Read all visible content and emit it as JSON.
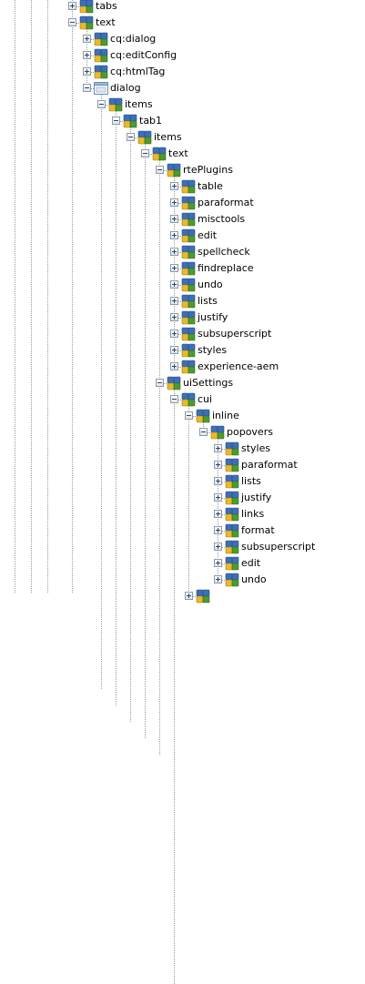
{
  "tree": {
    "nodes": [
      {
        "label": "tabs",
        "depth": 0,
        "toggle": "plus",
        "icon": "node-icon"
      },
      {
        "label": "text",
        "depth": 0,
        "toggle": "minus",
        "icon": "node-icon"
      },
      {
        "label": "cq:dialog",
        "depth": 1,
        "toggle": "plus",
        "icon": "node-icon"
      },
      {
        "label": "cq:editConfig",
        "depth": 1,
        "toggle": "plus",
        "icon": "node-icon"
      },
      {
        "label": "cq:htmlTag",
        "depth": 1,
        "toggle": "plus",
        "icon": "node-icon"
      },
      {
        "label": "dialog",
        "depth": 1,
        "toggle": "minus",
        "icon": "dialog-icon"
      },
      {
        "label": "items",
        "depth": 2,
        "toggle": "minus",
        "icon": "node-icon"
      },
      {
        "label": "tab1",
        "depth": 3,
        "toggle": "minus",
        "icon": "node-icon"
      },
      {
        "label": "items",
        "depth": 4,
        "toggle": "minus",
        "icon": "node-icon"
      },
      {
        "label": "text",
        "depth": 5,
        "toggle": "minus",
        "icon": "node-icon"
      },
      {
        "label": "rtePlugins",
        "depth": 6,
        "toggle": "minus",
        "icon": "node-icon"
      },
      {
        "label": "table",
        "depth": 7,
        "toggle": "plus",
        "icon": "node-icon"
      },
      {
        "label": "paraformat",
        "depth": 7,
        "toggle": "plus",
        "icon": "node-icon"
      },
      {
        "label": "misctools",
        "depth": 7,
        "toggle": "plus",
        "icon": "node-icon"
      },
      {
        "label": "edit",
        "depth": 7,
        "toggle": "plus",
        "icon": "node-icon"
      },
      {
        "label": "spellcheck",
        "depth": 7,
        "toggle": "plus",
        "icon": "node-icon"
      },
      {
        "label": "findreplace",
        "depth": 7,
        "toggle": "plus",
        "icon": "node-icon"
      },
      {
        "label": "undo",
        "depth": 7,
        "toggle": "plus",
        "icon": "node-icon"
      },
      {
        "label": "lists",
        "depth": 7,
        "toggle": "plus",
        "icon": "node-icon"
      },
      {
        "label": "justify",
        "depth": 7,
        "toggle": "plus",
        "icon": "node-icon"
      },
      {
        "label": "subsuperscript",
        "depth": 7,
        "toggle": "plus",
        "icon": "node-icon"
      },
      {
        "label": "styles",
        "depth": 7,
        "toggle": "plus",
        "icon": "node-icon"
      },
      {
        "label": "experience-aem",
        "depth": 7,
        "toggle": "plus",
        "icon": "node-icon"
      },
      {
        "label": "uiSettings",
        "depth": 6,
        "toggle": "minus",
        "icon": "node-icon"
      },
      {
        "label": "cui",
        "depth": 7,
        "toggle": "minus",
        "icon": "node-icon"
      },
      {
        "label": "inline",
        "depth": 8,
        "toggle": "minus",
        "icon": "node-icon"
      },
      {
        "label": "popovers",
        "depth": 9,
        "toggle": "minus",
        "icon": "node-icon"
      },
      {
        "label": "styles",
        "depth": 10,
        "toggle": "plus",
        "icon": "node-icon"
      },
      {
        "label": "paraformat",
        "depth": 10,
        "toggle": "plus",
        "icon": "node-icon"
      },
      {
        "label": "lists",
        "depth": 10,
        "toggle": "plus",
        "icon": "node-icon"
      },
      {
        "label": "justify",
        "depth": 10,
        "toggle": "plus",
        "icon": "node-icon"
      },
      {
        "label": "links",
        "depth": 10,
        "toggle": "plus",
        "icon": "node-icon"
      },
      {
        "label": "format",
        "depth": 10,
        "toggle": "plus",
        "icon": "node-icon"
      },
      {
        "label": "subsuperscript",
        "depth": 10,
        "toggle": "plus",
        "icon": "node-icon"
      },
      {
        "label": "edit",
        "depth": 10,
        "toggle": "plus",
        "icon": "node-icon"
      },
      {
        "label": "undo",
        "depth": 10,
        "toggle": "plus",
        "icon": "node-icon"
      },
      {
        "label": "",
        "depth": 8,
        "toggle": "plus",
        "icon": "node-icon"
      }
    ]
  },
  "colors": {
    "node_blue": "#3d6fb6",
    "node_yellow": "#e8b92a",
    "node_green": "#4e9a2f",
    "dotted_line": "#9a9a9a",
    "dialog_frame": "#6b8fb8"
  }
}
